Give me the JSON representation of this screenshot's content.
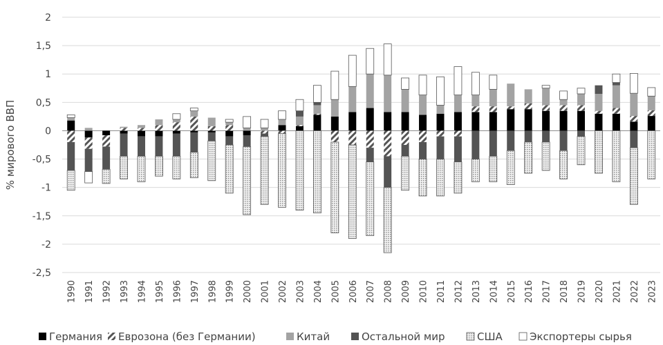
{
  "chart_data": {
    "type": "bar",
    "stacked": true,
    "ylabel": "% мирового ВВП",
    "xlabel": "",
    "ylim": [
      -2.5,
      2
    ],
    "yticks": [
      2,
      1.5,
      1,
      0.5,
      0,
      -0.5,
      -1,
      -1.5,
      -2,
      -2.5
    ],
    "ytick_labels": [
      "2",
      "1,5",
      "1",
      "0,5",
      "0",
      "-0,5",
      "-1",
      "-1,5",
      "-2",
      "-2,5"
    ],
    "grid": "horizontal",
    "legend_position": "bottom",
    "categories": [
      "1990",
      "1991",
      "1992",
      "1993",
      "1994",
      "1995",
      "1996",
      "1997",
      "1998",
      "1999",
      "2000",
      "2001",
      "2002",
      "2003",
      "2004",
      "2005",
      "2006",
      "2007",
      "2008",
      "2009",
      "2010",
      "2011",
      "2012",
      "2013",
      "2014",
      "2015",
      "2016",
      "2017",
      "2018",
      "2019",
      "2020",
      "2021",
      "2022",
      "2023"
    ],
    "series": [
      {
        "name": "Германия",
        "color": "#000000",
        "pattern": "solid",
        "values": [
          0.18,
          -0.12,
          -0.08,
          -0.05,
          -0.1,
          -0.1,
          -0.05,
          -0.03,
          -0.03,
          -0.1,
          -0.08,
          0.0,
          0.1,
          0.08,
          0.28,
          0.25,
          0.33,
          0.4,
          0.33,
          0.33,
          0.28,
          0.3,
          0.33,
          0.33,
          0.33,
          0.38,
          0.38,
          0.35,
          0.35,
          0.35,
          0.3,
          0.3,
          0.16,
          0.26
        ]
      },
      {
        "name": "Еврозона (без Германии)",
        "color": "#555555",
        "pattern": "hatch",
        "values": [
          -0.2,
          -0.2,
          -0.2,
          0.05,
          0.05,
          0.1,
          0.15,
          0.25,
          0.08,
          0.1,
          0.0,
          -0.05,
          -0.05,
          0.02,
          0.02,
          -0.2,
          -0.25,
          -0.3,
          -0.45,
          -0.25,
          -0.2,
          -0.1,
          -0.1,
          0.1,
          0.1,
          0.05,
          0.1,
          0.1,
          0.1,
          0.1,
          0.05,
          0.1,
          0.1,
          0.1
        ]
      },
      {
        "name": "Китай",
        "color": "#a3a3a3",
        "pattern": "solid",
        "values": [
          0.05,
          0.05,
          0.0,
          0.02,
          0.05,
          0.1,
          0.05,
          0.1,
          0.15,
          0.05,
          0.05,
          0.05,
          0.1,
          0.15,
          0.15,
          0.3,
          0.45,
          0.6,
          0.65,
          0.4,
          0.35,
          0.15,
          0.3,
          0.2,
          0.3,
          0.4,
          0.25,
          0.3,
          0.1,
          0.2,
          0.3,
          0.4,
          0.4,
          0.25
        ]
      },
      {
        "name": "Остальной мир",
        "color": "#545454",
        "pattern": "solid",
        "values": [
          -0.5,
          -0.4,
          -0.4,
          -0.4,
          -0.35,
          -0.35,
          -0.4,
          -0.35,
          -0.15,
          -0.15,
          -0.2,
          -0.05,
          0.0,
          0.1,
          0.05,
          0.0,
          0.0,
          -0.25,
          -0.55,
          -0.2,
          -0.3,
          -0.4,
          -0.45,
          -0.5,
          -0.45,
          -0.35,
          -0.2,
          -0.2,
          -0.35,
          -0.1,
          0.15,
          0.05,
          -0.3,
          0.0
        ]
      },
      {
        "name": "США",
        "color": "#d2d2d2",
        "pattern": "dots",
        "values": [
          -0.35,
          0.0,
          -0.25,
          -0.4,
          -0.45,
          -0.35,
          -0.4,
          -0.45,
          -0.7,
          -0.85,
          -1.2,
          -1.2,
          -1.3,
          -1.4,
          -1.45,
          -1.6,
          -1.65,
          -1.3,
          -1.15,
          -0.6,
          -0.65,
          -0.65,
          -0.55,
          -0.4,
          -0.45,
          -0.6,
          -0.55,
          -0.5,
          -0.5,
          -0.5,
          -0.75,
          -0.9,
          -1.0,
          -0.85
        ]
      },
      {
        "name": "Экспортеры сырья",
        "color": "#ffffff",
        "pattern": "outline",
        "values": [
          0.05,
          -0.2,
          0.0,
          0.0,
          0.0,
          0.0,
          0.1,
          0.05,
          0.0,
          0.05,
          0.2,
          0.15,
          0.15,
          0.2,
          0.3,
          0.5,
          0.55,
          0.45,
          0.55,
          0.2,
          0.35,
          0.5,
          0.5,
          0.4,
          0.25,
          0.0,
          0.0,
          0.05,
          0.15,
          0.1,
          0.0,
          0.15,
          0.35,
          0.15
        ]
      }
    ]
  }
}
